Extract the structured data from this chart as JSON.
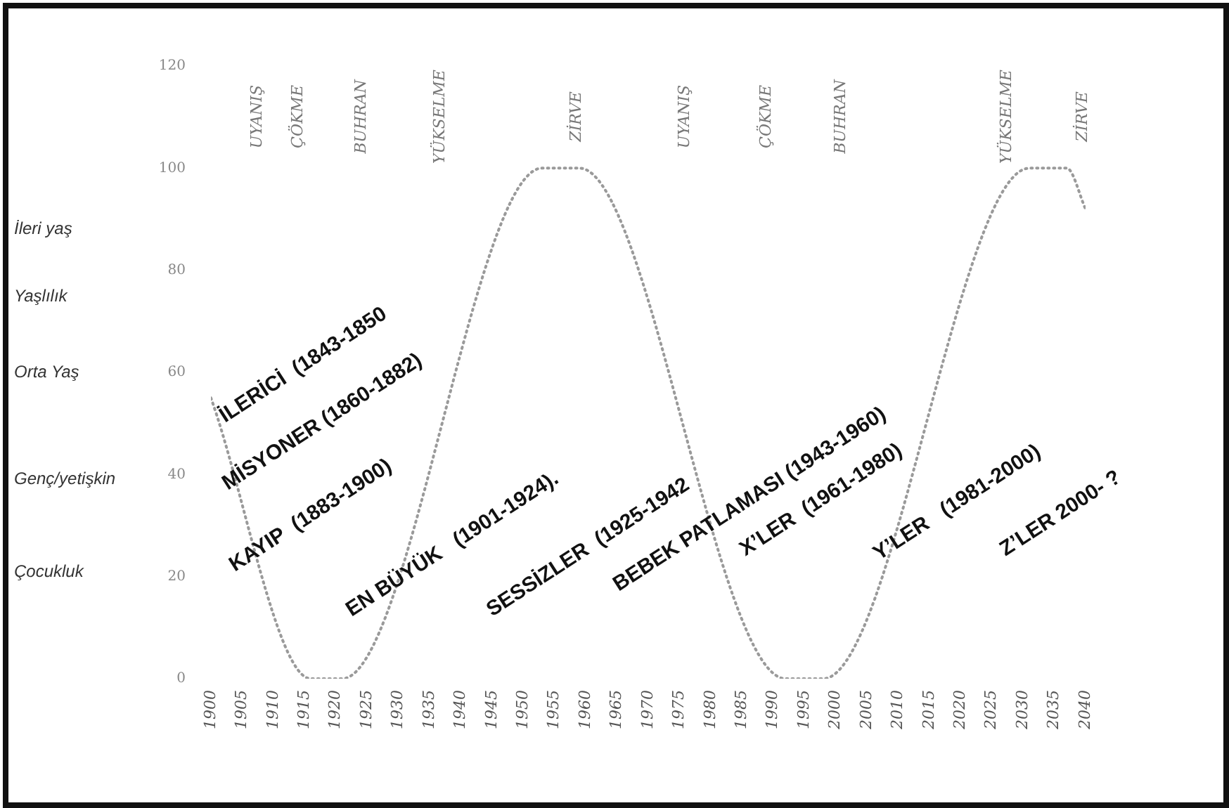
{
  "chart_data": {
    "type": "line",
    "x": [
      1900,
      1916,
      1921,
      1953,
      1959,
      1992,
      1998,
      2031,
      2037,
      2040
    ],
    "series": [
      {
        "color": "#9a9a9a",
        "values": [
          55,
          0,
          0,
          100,
          100,
          0,
          0,
          100,
          100,
          92
        ]
      }
    ],
    "xlim": [
      1900,
      2040
    ],
    "xticks": [
      1900,
      1905,
      1910,
      1915,
      1920,
      1925,
      1930,
      1935,
      1940,
      1945,
      1950,
      1955,
      1960,
      1965,
      1970,
      1975,
      1980,
      1985,
      1990,
      1995,
      2000,
      2005,
      2010,
      2015,
      2020,
      2025,
      2030,
      2035,
      2040
    ],
    "ylim": [
      0,
      120
    ],
    "yticks": [
      0,
      20,
      40,
      60,
      80,
      100,
      120
    ],
    "grid": false,
    "legend": false,
    "marker": "none",
    "line_style": "dotted",
    "annotations": [
      "UYANIŞ",
      "ÇÖKME",
      "BUHRAN",
      "YÜKSELME",
      "ZİRVE",
      "UYANIŞ",
      "ÇÖKME",
      "BUHRAN",
      "YÜKSELME",
      "ZİRVE",
      "İleri yaş",
      "Yaşlılık",
      "Orta Yaş",
      "Genç/yetişkin",
      "Çocukluk",
      "İLERİCİ  (1843-1850",
      "MİSYONER (1860-1882)",
      "KAYIP  (1883-1900)",
      "EN BÜYÜK   (1901-1924).",
      "SESSİZLER  (1925-1942",
      "BEBEK PATLAMASI (1943-1960)",
      "X’LER  (1961-1980)",
      "Y’LER   (1981-2000)",
      "Z’LER 2000- ?"
    ]
  }
}
